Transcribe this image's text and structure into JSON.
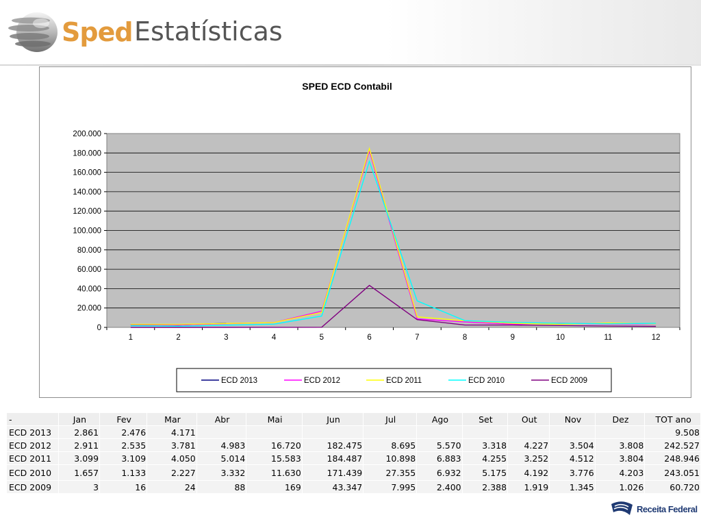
{
  "header": {
    "logo_text": "Sped",
    "title": "Estatísticas"
  },
  "chart_data": {
    "type": "line",
    "title": "SPED ECD Contabil",
    "xlabel": "",
    "ylabel": "",
    "x": [
      1,
      2,
      3,
      4,
      5,
      6,
      7,
      8,
      9,
      10,
      11,
      12
    ],
    "x_ticks": [
      "1",
      "2",
      "3",
      "4",
      "5",
      "6",
      "7",
      "8",
      "9",
      "10",
      "11",
      "12"
    ],
    "ylim": [
      0,
      200000
    ],
    "y_ticks": [
      "0",
      "20.000",
      "40.000",
      "60.000",
      "80.000",
      "100.000",
      "120.000",
      "140.000",
      "160.000",
      "180.000",
      "200.000"
    ],
    "grid": true,
    "legend_position": "bottom",
    "series": [
      {
        "name": "ECD 2013",
        "color": "#000080",
        "values": [
          2861,
          2476,
          4171,
          null,
          null,
          null,
          null,
          null,
          null,
          null,
          null,
          null
        ]
      },
      {
        "name": "ECD 2012",
        "color": "#ff00ff",
        "values": [
          2911,
          2535,
          3781,
          4983,
          16720,
          182475,
          8695,
          5570,
          3318,
          4227,
          3504,
          3808
        ]
      },
      {
        "name": "ECD 2011",
        "color": "#ffff00",
        "values": [
          3099,
          3109,
          4050,
          5014,
          15583,
          184487,
          10898,
          6883,
          4255,
          3252,
          4512,
          3804
        ]
      },
      {
        "name": "ECD 2010",
        "color": "#00ffff",
        "values": [
          1657,
          1133,
          2227,
          3332,
          11630,
          171439,
          27355,
          6932,
          5175,
          4192,
          3776,
          4203
        ]
      },
      {
        "name": "ECD 2009",
        "color": "#800080",
        "values": [
          3,
          16,
          24,
          88,
          169,
          43347,
          7995,
          2400,
          2388,
          1919,
          1345,
          1026
        ]
      }
    ]
  },
  "table": {
    "headers": [
      "-",
      "Jan",
      "Fev",
      "Mar",
      "Abr",
      "Mai",
      "Jun",
      "Jul",
      "Ago",
      "Set",
      "Out",
      "Nov",
      "Dez",
      "TOT ano"
    ],
    "rows": [
      [
        "ECD 2013",
        "2.861",
        "2.476",
        "4.171",
        "",
        "",
        "",
        "",
        "",
        "",
        "",
        "",
        "",
        "9.508"
      ],
      [
        "ECD 2012",
        "2.911",
        "2.535",
        "3.781",
        "4.983",
        "16.720",
        "182.475",
        "8.695",
        "5.570",
        "3.318",
        "4.227",
        "3.504",
        "3.808",
        "242.527"
      ],
      [
        "ECD 2011",
        "3.099",
        "3.109",
        "4.050",
        "5.014",
        "15.583",
        "184.487",
        "10.898",
        "6.883",
        "4.255",
        "3.252",
        "4.512",
        "3.804",
        "248.946"
      ],
      [
        "ECD 2010",
        "1.657",
        "1.133",
        "2.227",
        "3.332",
        "11.630",
        "171.439",
        "27.355",
        "6.932",
        "5.175",
        "4.192",
        "3.776",
        "4.203",
        "243.051"
      ],
      [
        "ECD 2009",
        "3",
        "16",
        "24",
        "88",
        "169",
        "43.347",
        "7.995",
        "2.400",
        "2.388",
        "1.919",
        "1.345",
        "1.026",
        "60.720"
      ]
    ]
  },
  "footer": {
    "logo_text": "Receita Federal"
  }
}
